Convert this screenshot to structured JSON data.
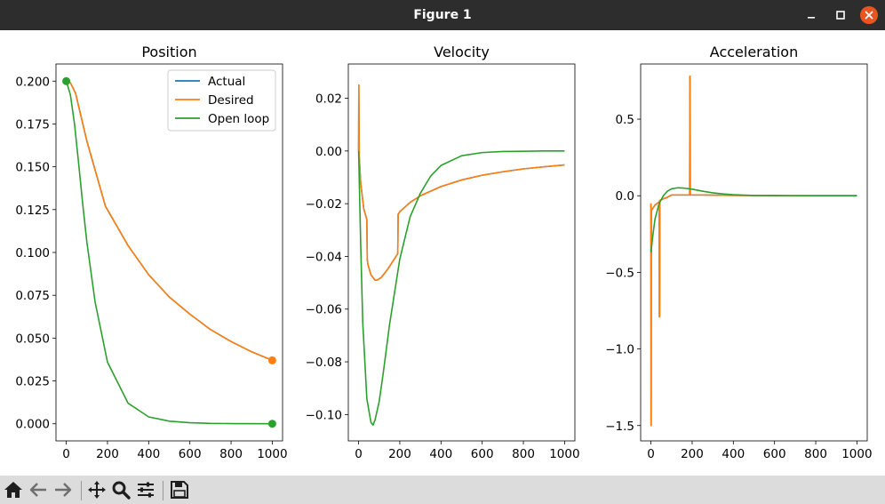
{
  "window": {
    "title": "Figure 1"
  },
  "toolbar": {
    "buttons": [
      {
        "name": "home-button",
        "icon": "home-icon"
      },
      {
        "name": "back-button",
        "icon": "arrow-left-icon"
      },
      {
        "name": "forward-button",
        "icon": "arrow-right-icon"
      },
      {
        "name": "pan-button",
        "icon": "move-icon"
      },
      {
        "name": "zoom-button",
        "icon": "magnifier-icon"
      },
      {
        "name": "configure-subplots-button",
        "icon": "sliders-icon"
      },
      {
        "name": "save-button",
        "icon": "floppy-disk-icon"
      }
    ]
  },
  "chart_data": [
    {
      "type": "line",
      "title": "Position",
      "xlim": [
        -50,
        1050
      ],
      "ylim": [
        -0.01,
        0.21
      ],
      "xticks": [
        0,
        200,
        400,
        600,
        800,
        1000
      ],
      "yticks": [
        0.0,
        0.025,
        0.05,
        0.075,
        0.1,
        0.125,
        0.15,
        0.175,
        0.2
      ],
      "ytick_labels": [
        "0.000",
        "0.025",
        "0.050",
        "0.075",
        "0.100",
        "0.125",
        "0.150",
        "0.175",
        "0.200"
      ],
      "legend": {
        "position": "top-right",
        "entries": [
          "Actual",
          "Desired",
          "Open loop"
        ]
      },
      "series": [
        {
          "name": "Actual",
          "color": "#1f77b4",
          "x": [
            0,
            20,
            45,
            100,
            190,
            300,
            400,
            500,
            600,
            700,
            800,
            900,
            1000
          ],
          "y": [
            0.2,
            0.199,
            0.193,
            0.165,
            0.127,
            0.104,
            0.087,
            0.074,
            0.064,
            0.055,
            0.048,
            0.042,
            0.037
          ]
        },
        {
          "name": "Desired",
          "color": "#ff7f0e",
          "x": [
            0,
            20,
            45,
            100,
            190,
            300,
            400,
            500,
            600,
            700,
            800,
            900,
            1000
          ],
          "y": [
            0.2,
            0.199,
            0.193,
            0.165,
            0.127,
            0.104,
            0.087,
            0.074,
            0.064,
            0.055,
            0.048,
            0.042,
            0.037
          ],
          "end_markers": [
            [
              1000,
              0.037
            ]
          ]
        },
        {
          "name": "Open loop",
          "color": "#2ca02c",
          "x": [
            0,
            20,
            40,
            60,
            80,
            100,
            140,
            200,
            300,
            400,
            500,
            600,
            700,
            800,
            1000
          ],
          "y": [
            0.2,
            0.192,
            0.175,
            0.152,
            0.128,
            0.106,
            0.071,
            0.036,
            0.012,
            0.004,
            0.0015,
            0.0006,
            0.0002,
            0.0001,
            0.0
          ],
          "end_markers": [
            [
              0,
              0.2
            ],
            [
              1000,
              0.0
            ]
          ]
        }
      ]
    },
    {
      "type": "line",
      "title": "Velocity",
      "xlim": [
        -50,
        1050
      ],
      "ylim": [
        -0.11,
        0.033
      ],
      "xticks": [
        0,
        200,
        400,
        600,
        800,
        1000
      ],
      "yticks": [
        -0.1,
        -0.08,
        -0.06,
        -0.04,
        -0.02,
        0.0,
        0.02
      ],
      "ytick_labels": [
        "−0.10",
        "−0.08",
        "−0.06",
        "−0.04",
        "−0.02",
        "0.00",
        "0.02"
      ],
      "series": [
        {
          "name": "Actual",
          "color": "#1f77b4",
          "x": [
            0,
            1,
            3,
            10,
            25,
            40,
            42,
            45,
            60,
            80,
            90,
            110,
            140,
            190,
            192,
            200,
            250,
            300,
            400,
            500,
            600,
            700,
            800,
            900,
            1000
          ],
          "y": [
            0.0,
            0.025,
            -0.002,
            -0.012,
            -0.022,
            -0.026,
            -0.041,
            -0.043,
            -0.047,
            -0.049,
            -0.049,
            -0.048,
            -0.045,
            -0.039,
            -0.024,
            -0.023,
            -0.0195,
            -0.017,
            -0.0135,
            -0.011,
            -0.0092,
            -0.0079,
            -0.0068,
            -0.006,
            -0.0053
          ]
        },
        {
          "name": "Desired",
          "color": "#ff7f0e",
          "x": [
            0,
            1,
            3,
            10,
            25,
            40,
            42,
            45,
            60,
            80,
            90,
            110,
            140,
            190,
            192,
            200,
            250,
            300,
            400,
            500,
            600,
            700,
            800,
            900,
            1000
          ],
          "y": [
            0.0,
            0.025,
            -0.002,
            -0.012,
            -0.022,
            -0.026,
            -0.041,
            -0.043,
            -0.047,
            -0.049,
            -0.049,
            -0.048,
            -0.045,
            -0.039,
            -0.024,
            -0.023,
            -0.0195,
            -0.017,
            -0.0135,
            -0.011,
            -0.0092,
            -0.0079,
            -0.0068,
            -0.006,
            -0.0053
          ]
        },
        {
          "name": "Open loop",
          "color": "#2ca02c",
          "x": [
            0,
            10,
            20,
            40,
            60,
            70,
            80,
            100,
            120,
            150,
            200,
            250,
            300,
            350,
            400,
            500,
            600,
            700,
            800,
            900,
            1000
          ],
          "y": [
            0.0,
            -0.035,
            -0.065,
            -0.094,
            -0.103,
            -0.104,
            -0.102,
            -0.095,
            -0.084,
            -0.066,
            -0.041,
            -0.025,
            -0.016,
            -0.0095,
            -0.0055,
            -0.0018,
            -0.0006,
            -0.0002,
            -0.0001,
            0.0,
            0.0
          ]
        }
      ]
    },
    {
      "type": "line",
      "title": "Acceleration",
      "xlim": [
        -50,
        1050
      ],
      "ylim": [
        -1.6,
        0.86
      ],
      "xticks": [
        0,
        200,
        400,
        600,
        800,
        1000
      ],
      "yticks": [
        -1.5,
        -1.0,
        -0.5,
        0.0,
        0.5
      ],
      "ytick_labels": [
        "−1.5",
        "−1.0",
        "−0.5",
        "0.0",
        "0.5"
      ],
      "series": [
        {
          "name": "Actual",
          "color": "#1f77b4",
          "x": [
            0,
            0.5,
            1,
            2,
            5,
            10,
            20,
            40,
            41,
            42,
            43,
            44,
            60,
            80,
            100,
            150,
            188,
            189,
            190,
            191,
            192,
            250,
            300,
            400,
            600,
            800,
            1000
          ],
          "y": [
            -0.05,
            -1.5,
            -1.5,
            -0.1,
            -0.09,
            -0.08,
            -0.06,
            -0.04,
            -0.79,
            -0.79,
            -0.03,
            -0.03,
            -0.02,
            -0.01,
            0.005,
            0.005,
            0.005,
            0.78,
            0.78,
            0.01,
            0.005,
            0.005,
            0.004,
            0.002,
            0.001,
            0.0,
            0.0
          ]
        },
        {
          "name": "Desired",
          "color": "#ff7f0e",
          "x": [
            0,
            0.5,
            1,
            2,
            5,
            10,
            20,
            40,
            41,
            42,
            43,
            44,
            60,
            80,
            100,
            150,
            188,
            189,
            190,
            191,
            192,
            250,
            300,
            400,
            600,
            800,
            1000
          ],
          "y": [
            -0.05,
            -1.5,
            -1.5,
            -0.1,
            -0.09,
            -0.08,
            -0.06,
            -0.04,
            -0.79,
            -0.79,
            -0.03,
            -0.03,
            -0.02,
            -0.01,
            0.005,
            0.005,
            0.005,
            0.78,
            0.78,
            0.01,
            0.005,
            0.005,
            0.004,
            0.002,
            0.001,
            0.0,
            0.0
          ]
        },
        {
          "name": "Open loop",
          "color": "#2ca02c",
          "x": [
            0,
            10,
            20,
            40,
            60,
            80,
            100,
            130,
            160,
            200,
            250,
            300,
            350,
            400,
            500,
            600,
            800,
            1000
          ],
          "y": [
            -0.37,
            -0.25,
            -0.15,
            -0.05,
            0.0,
            0.03,
            0.045,
            0.052,
            0.05,
            0.043,
            0.03,
            0.019,
            0.012,
            0.007,
            0.002,
            0.001,
            0.0,
            0.0
          ]
        }
      ]
    }
  ]
}
